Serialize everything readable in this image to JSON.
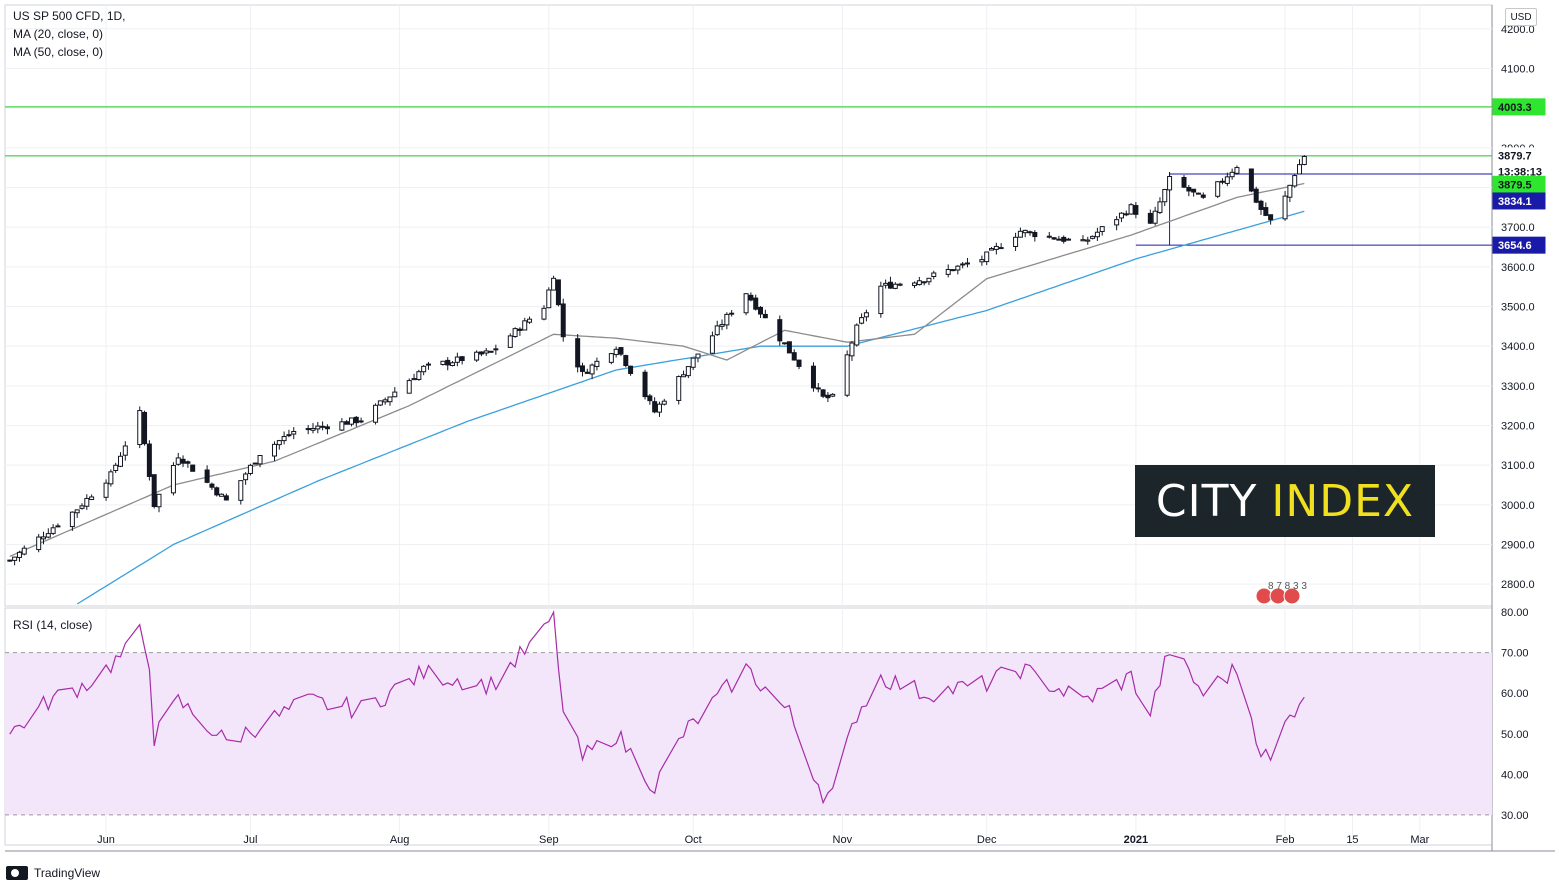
{
  "legend": {
    "title": "US SP 500 CFD, 1D,",
    "ma20": "MA (20, close, 0)",
    "ma50": "MA (50, close, 0)",
    "rsi": "RSI (14, close)"
  },
  "currency": "USD",
  "brand": {
    "watermark_left": "CITY",
    "watermark_right": "INDEX",
    "footer": "TradingView"
  },
  "flags_label": "8 7 8 3 3",
  "colors": {
    "candle": "#131722",
    "ma20": "#8c8c8c",
    "ma50": "#3ba0dd",
    "hline_green": "#22c322",
    "hline_blue": "#1a1aa8",
    "rsi_line": "#a72ca7",
    "rsi_band": "#f3e6fb"
  },
  "price_labels": [
    {
      "text": "4003.3",
      "bg": "#2ee62e",
      "fg": "#131722",
      "price": 4003.3
    },
    {
      "text": "3879.7",
      "bg": "#ffffff",
      "fg": "#131722",
      "price": 3881
    },
    {
      "text": "13:38:13",
      "bg": "#ffffff",
      "fg": "#131722",
      "price": 3840
    },
    {
      "text": "3879.5",
      "bg": "#2ee62e",
      "fg": "#131722",
      "price": 3808
    },
    {
      "text": "3834.1",
      "bg": "#1a1aa8",
      "fg": "#ffffff",
      "price": 3766
    },
    {
      "text": "3654.6",
      "bg": "#1a1aa8",
      "fg": "#ffffff",
      "price": 3654.6
    }
  ],
  "chart_data": [
    {
      "type": "candlestick",
      "title": "US SP 500 CFD, 1D",
      "y_ticks": [
        4200,
        4100,
        4000,
        3900,
        3800,
        3700,
        3600,
        3500,
        3400,
        3300,
        3200,
        3100,
        3000,
        2900,
        2800
      ],
      "y_tick_labels": [
        "4200.0",
        "4100.0",
        "4000.0",
        "3900.0",
        "3800.0",
        "3700.0",
        "3600.0",
        "3500.0",
        "3400.0",
        "3300.0",
        "3200.0",
        "3100.0",
        "3000.0",
        "2900.0",
        "2800.0"
      ],
      "ylim": [
        2745,
        4260
      ],
      "x_labels": [
        {
          "label": "Jun",
          "date": "2020-06-01",
          "bold": false
        },
        {
          "label": "Jul",
          "date": "2020-07-01",
          "bold": false
        },
        {
          "label": "Aug",
          "date": "2020-08-01",
          "bold": false
        },
        {
          "label": "Sep",
          "date": "2020-09-01",
          "bold": false
        },
        {
          "label": "Oct",
          "date": "2020-10-01",
          "bold": false
        },
        {
          "label": "Nov",
          "date": "2020-11-01",
          "bold": false
        },
        {
          "label": "Dec",
          "date": "2020-12-01",
          "bold": false
        },
        {
          "label": "2021",
          "date": "2021-01-01",
          "bold": true
        },
        {
          "label": "Feb",
          "date": "2021-02-01",
          "bold": false
        },
        {
          "label": "15",
          "date": "2021-02-15",
          "bold": false
        },
        {
          "label": "Mar",
          "date": "2021-03-01",
          "bold": false
        }
      ],
      "xlim": [
        "2020-05-11",
        "2021-03-16"
      ],
      "close_anchors": [
        {
          "date": "2020-05-12",
          "close": 2860
        },
        {
          "date": "2020-05-19",
          "close": 2925
        },
        {
          "date": "2020-05-26",
          "close": 2990
        },
        {
          "date": "2020-06-02",
          "close": 3075
        },
        {
          "date": "2020-06-08",
          "close": 3230
        },
        {
          "date": "2020-06-11",
          "close": 3000
        },
        {
          "date": "2020-06-16",
          "close": 3125
        },
        {
          "date": "2020-06-26",
          "close": 3010
        },
        {
          "date": "2020-07-03",
          "close": 3130
        },
        {
          "date": "2020-07-10",
          "close": 3185
        },
        {
          "date": "2020-07-24",
          "close": 3215
        },
        {
          "date": "2020-08-06",
          "close": 3345
        },
        {
          "date": "2020-08-20",
          "close": 3385
        },
        {
          "date": "2020-08-31",
          "close": 3500
        },
        {
          "date": "2020-09-02",
          "close": 3580
        },
        {
          "date": "2020-09-04",
          "close": 3425
        },
        {
          "date": "2020-09-08",
          "close": 3330
        },
        {
          "date": "2020-09-15",
          "close": 3400
        },
        {
          "date": "2020-09-23",
          "close": 3235
        },
        {
          "date": "2020-09-29",
          "close": 3335
        },
        {
          "date": "2020-10-12",
          "close": 3535
        },
        {
          "date": "2020-10-19",
          "close": 3420
        },
        {
          "date": "2020-10-28",
          "close": 3270
        },
        {
          "date": "2020-10-30",
          "close": 3270
        },
        {
          "date": "2020-11-04",
          "close": 3445
        },
        {
          "date": "2020-11-09",
          "close": 3550
        },
        {
          "date": "2020-11-18",
          "close": 3570
        },
        {
          "date": "2020-11-30",
          "close": 3620
        },
        {
          "date": "2020-12-08",
          "close": 3690
        },
        {
          "date": "2020-12-21",
          "close": 3660
        },
        {
          "date": "2020-12-31",
          "close": 3750
        },
        {
          "date": "2021-01-04",
          "close": 3705
        },
        {
          "date": "2021-01-08",
          "close": 3820
        },
        {
          "date": "2021-01-15",
          "close": 3770
        },
        {
          "date": "2021-01-22",
          "close": 3855
        },
        {
          "date": "2021-01-27",
          "close": 3745
        },
        {
          "date": "2021-01-29",
          "close": 3715
        },
        {
          "date": "2021-02-01",
          "close": 3775
        },
        {
          "date": "2021-02-03",
          "close": 3835
        },
        {
          "date": "2021-02-05",
          "close": 3879.7
        }
      ],
      "ma20_anchors": [
        {
          "date": "2020-05-12",
          "value": 2870
        },
        {
          "date": "2020-06-15",
          "value": 3050
        },
        {
          "date": "2020-07-06",
          "value": 3110
        },
        {
          "date": "2020-08-03",
          "value": 3250
        },
        {
          "date": "2020-09-02",
          "value": 3430
        },
        {
          "date": "2020-09-15",
          "value": 3420
        },
        {
          "date": "2020-09-29",
          "value": 3400
        },
        {
          "date": "2020-10-08",
          "value": 3365
        },
        {
          "date": "2020-10-20",
          "value": 3440
        },
        {
          "date": "2020-11-02",
          "value": 3410
        },
        {
          "date": "2020-11-16",
          "value": 3430
        },
        {
          "date": "2020-12-01",
          "value": 3570
        },
        {
          "date": "2020-12-31",
          "value": 3680
        },
        {
          "date": "2021-01-22",
          "value": 3775
        },
        {
          "date": "2021-02-05",
          "value": 3810
        }
      ],
      "ma50_anchors": [
        {
          "date": "2020-05-26",
          "value": 2750
        },
        {
          "date": "2020-06-15",
          "value": 2900
        },
        {
          "date": "2020-07-15",
          "value": 3060
        },
        {
          "date": "2020-08-15",
          "value": 3210
        },
        {
          "date": "2020-09-15",
          "value": 3340
        },
        {
          "date": "2020-10-15",
          "value": 3400
        },
        {
          "date": "2020-11-02",
          "value": 3400
        },
        {
          "date": "2020-12-01",
          "value": 3490
        },
        {
          "date": "2021-01-01",
          "value": 3620
        },
        {
          "date": "2021-02-05",
          "value": 3740
        }
      ],
      "hlines": [
        {
          "price": 4003.3,
          "color": "#22c322",
          "from": "2020-05-11",
          "to": "2021-03-16"
        },
        {
          "price": 3879.7,
          "color": "#22c322",
          "from": "2020-05-11",
          "to": "2021-03-16"
        },
        {
          "price": 3834.1,
          "color": "#1a1aa8",
          "from": "2021-01-08",
          "to": "2021-03-16"
        },
        {
          "price": 3654.6,
          "color": "#1a1aa8",
          "from": "2021-01-01",
          "to": "2021-03-16"
        }
      ],
      "range_box": {
        "from": "2021-01-08",
        "to": "2021-02-01",
        "top": 3834.1,
        "color": "#1a1aa8"
      }
    },
    {
      "type": "line",
      "title": "RSI (14, close)",
      "y_ticks": [
        80,
        70,
        60,
        50,
        40,
        30
      ],
      "y_tick_labels": [
        "80.00",
        "70.00",
        "60.00",
        "50.00",
        "40.00",
        "30.00"
      ],
      "ylim": [
        28,
        81
      ],
      "band": [
        30,
        70
      ],
      "rsi_anchors": [
        {
          "date": "2020-05-12",
          "value": 50
        },
        {
          "date": "2020-05-20",
          "value": 58
        },
        {
          "date": "2020-05-29",
          "value": 63
        },
        {
          "date": "2020-06-05",
          "value": 70
        },
        {
          "date": "2020-06-08",
          "value": 75
        },
        {
          "date": "2020-06-10",
          "value": 68
        },
        {
          "date": "2020-06-11",
          "value": 49
        },
        {
          "date": "2020-06-16",
          "value": 58
        },
        {
          "date": "2020-06-26",
          "value": 48
        },
        {
          "date": "2020-07-13",
          "value": 58
        },
        {
          "date": "2020-07-24",
          "value": 56
        },
        {
          "date": "2020-08-06",
          "value": 65
        },
        {
          "date": "2020-08-20",
          "value": 62
        },
        {
          "date": "2020-08-31",
          "value": 75
        },
        {
          "date": "2020-09-02",
          "value": 80
        },
        {
          "date": "2020-09-04",
          "value": 55
        },
        {
          "date": "2020-09-08",
          "value": 44
        },
        {
          "date": "2020-09-15",
          "value": 50
        },
        {
          "date": "2020-09-23",
          "value": 37
        },
        {
          "date": "2020-09-29",
          "value": 50
        },
        {
          "date": "2020-10-12",
          "value": 66
        },
        {
          "date": "2020-10-21",
          "value": 55
        },
        {
          "date": "2020-10-28",
          "value": 35
        },
        {
          "date": "2020-10-30",
          "value": 35
        },
        {
          "date": "2020-11-04",
          "value": 55
        },
        {
          "date": "2020-11-09",
          "value": 64
        },
        {
          "date": "2020-11-18",
          "value": 60
        },
        {
          "date": "2020-11-30",
          "value": 62
        },
        {
          "date": "2020-12-08",
          "value": 66
        },
        {
          "date": "2020-12-21",
          "value": 58
        },
        {
          "date": "2020-12-31",
          "value": 64
        },
        {
          "date": "2021-01-04",
          "value": 55
        },
        {
          "date": "2021-01-08",
          "value": 71
        },
        {
          "date": "2021-01-15",
          "value": 60
        },
        {
          "date": "2021-01-22",
          "value": 66
        },
        {
          "date": "2021-01-27",
          "value": 46
        },
        {
          "date": "2021-01-29",
          "value": 43
        },
        {
          "date": "2021-02-01",
          "value": 52
        },
        {
          "date": "2021-02-05",
          "value": 60.6
        }
      ]
    }
  ]
}
